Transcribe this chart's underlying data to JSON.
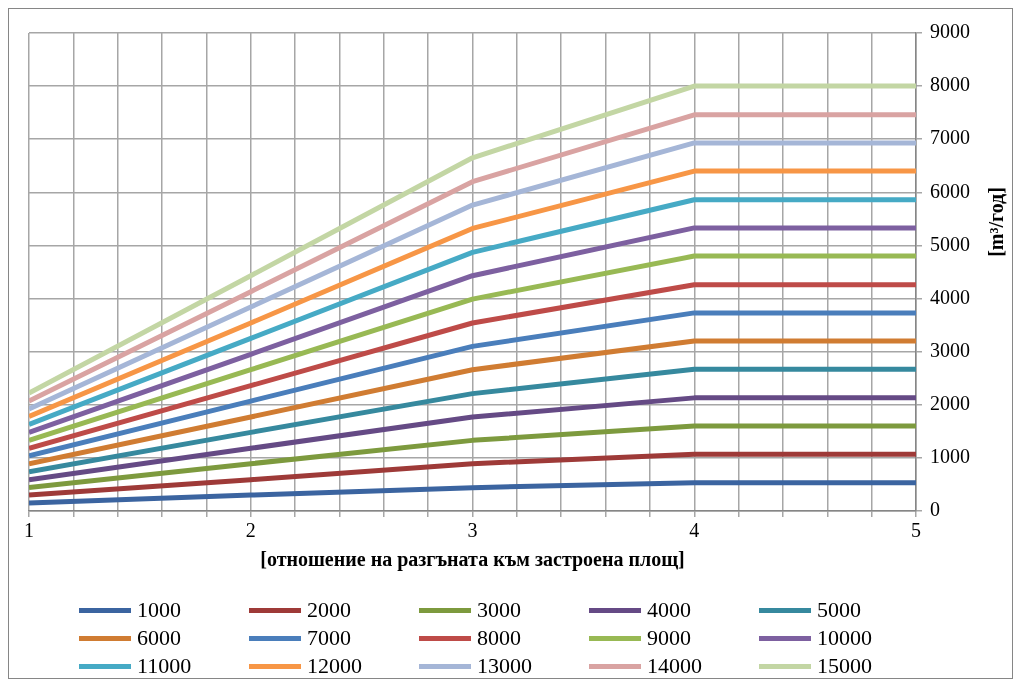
{
  "chart_data": {
    "type": "line",
    "xlabel": "[отношение на разгъната към застроена площ]",
    "ylabel": "[m³/год]",
    "x": [
      1,
      2,
      3,
      4,
      5
    ],
    "xlim": [
      1,
      5
    ],
    "xticks": [
      1,
      {
        "value": 1.2,
        "label": null
      },
      {
        "value": 1.4,
        "label": null
      },
      {
        "value": 1.6,
        "label": null
      },
      {
        "value": 1.8,
        "label": null
      },
      2,
      {
        "value": 2.2,
        "label": null
      },
      {
        "value": 2.4,
        "label": null
      },
      {
        "value": 2.6,
        "label": null
      },
      {
        "value": 2.8,
        "label": null
      },
      3,
      {
        "value": 3.2,
        "label": null
      },
      {
        "value": 3.4,
        "label": null
      },
      {
        "value": 3.6,
        "label": null
      },
      {
        "value": 3.8,
        "label": null
      },
      4,
      {
        "value": 4.2,
        "label": null
      },
      {
        "value": 4.4,
        "label": null
      },
      {
        "value": 4.6,
        "label": null
      },
      {
        "value": 4.8,
        "label": null
      },
      5
    ],
    "ylim": [
      0,
      9000
    ],
    "yticks": [
      0,
      1000,
      2000,
      3000,
      4000,
      5000,
      6000,
      7000,
      8000,
      9000
    ],
    "grid": true,
    "legend": "bottom",
    "marker": "none",
    "line_style": "solid",
    "series": [
      {
        "name": "1000",
        "color": "#3b64a0",
        "values": [
          150,
          300,
          440,
          530,
          530
        ]
      },
      {
        "name": "2000",
        "color": "#9e3a38",
        "values": [
          300,
          590,
          890,
          1070,
          1070
        ]
      },
      {
        "name": "3000",
        "color": "#7d9a3e",
        "values": [
          440,
          890,
          1330,
          1600,
          1600
        ]
      },
      {
        "name": "4000",
        "color": "#654a85",
        "values": [
          590,
          1180,
          1770,
          2130,
          2130
        ]
      },
      {
        "name": "5000",
        "color": "#36899e",
        "values": [
          740,
          1480,
          2210,
          2670,
          2670
        ]
      },
      {
        "name": "6000",
        "color": "#d07c32",
        "values": [
          890,
          1770,
          2660,
          3200,
          3200
        ]
      },
      {
        "name": "7000",
        "color": "#4a7ebb",
        "values": [
          1040,
          2070,
          3100,
          3730,
          3730
        ]
      },
      {
        "name": "8000",
        "color": "#be4b48",
        "values": [
          1180,
          2360,
          3540,
          4260,
          4260
        ]
      },
      {
        "name": "9000",
        "color": "#98b954",
        "values": [
          1330,
          2660,
          3990,
          4800,
          4800
        ]
      },
      {
        "name": "10000",
        "color": "#7d60a0",
        "values": [
          1480,
          2950,
          4430,
          5330,
          5330
        ]
      },
      {
        "name": "11000",
        "color": "#46aac5",
        "values": [
          1630,
          3250,
          4870,
          5860,
          5860
        ]
      },
      {
        "name": "12000",
        "color": "#f79646",
        "values": [
          1780,
          3540,
          5320,
          6400,
          6400
        ]
      },
      {
        "name": "13000",
        "color": "#a5b6d7",
        "values": [
          1920,
          3840,
          5760,
          6930,
          6930
        ]
      },
      {
        "name": "14000",
        "color": "#d9a3a2",
        "values": [
          2070,
          4130,
          6200,
          7460,
          7460
        ]
      },
      {
        "name": "15000",
        "color": "#c3d6a4",
        "values": [
          2220,
          4430,
          6650,
          8000,
          8000
        ]
      }
    ]
  }
}
